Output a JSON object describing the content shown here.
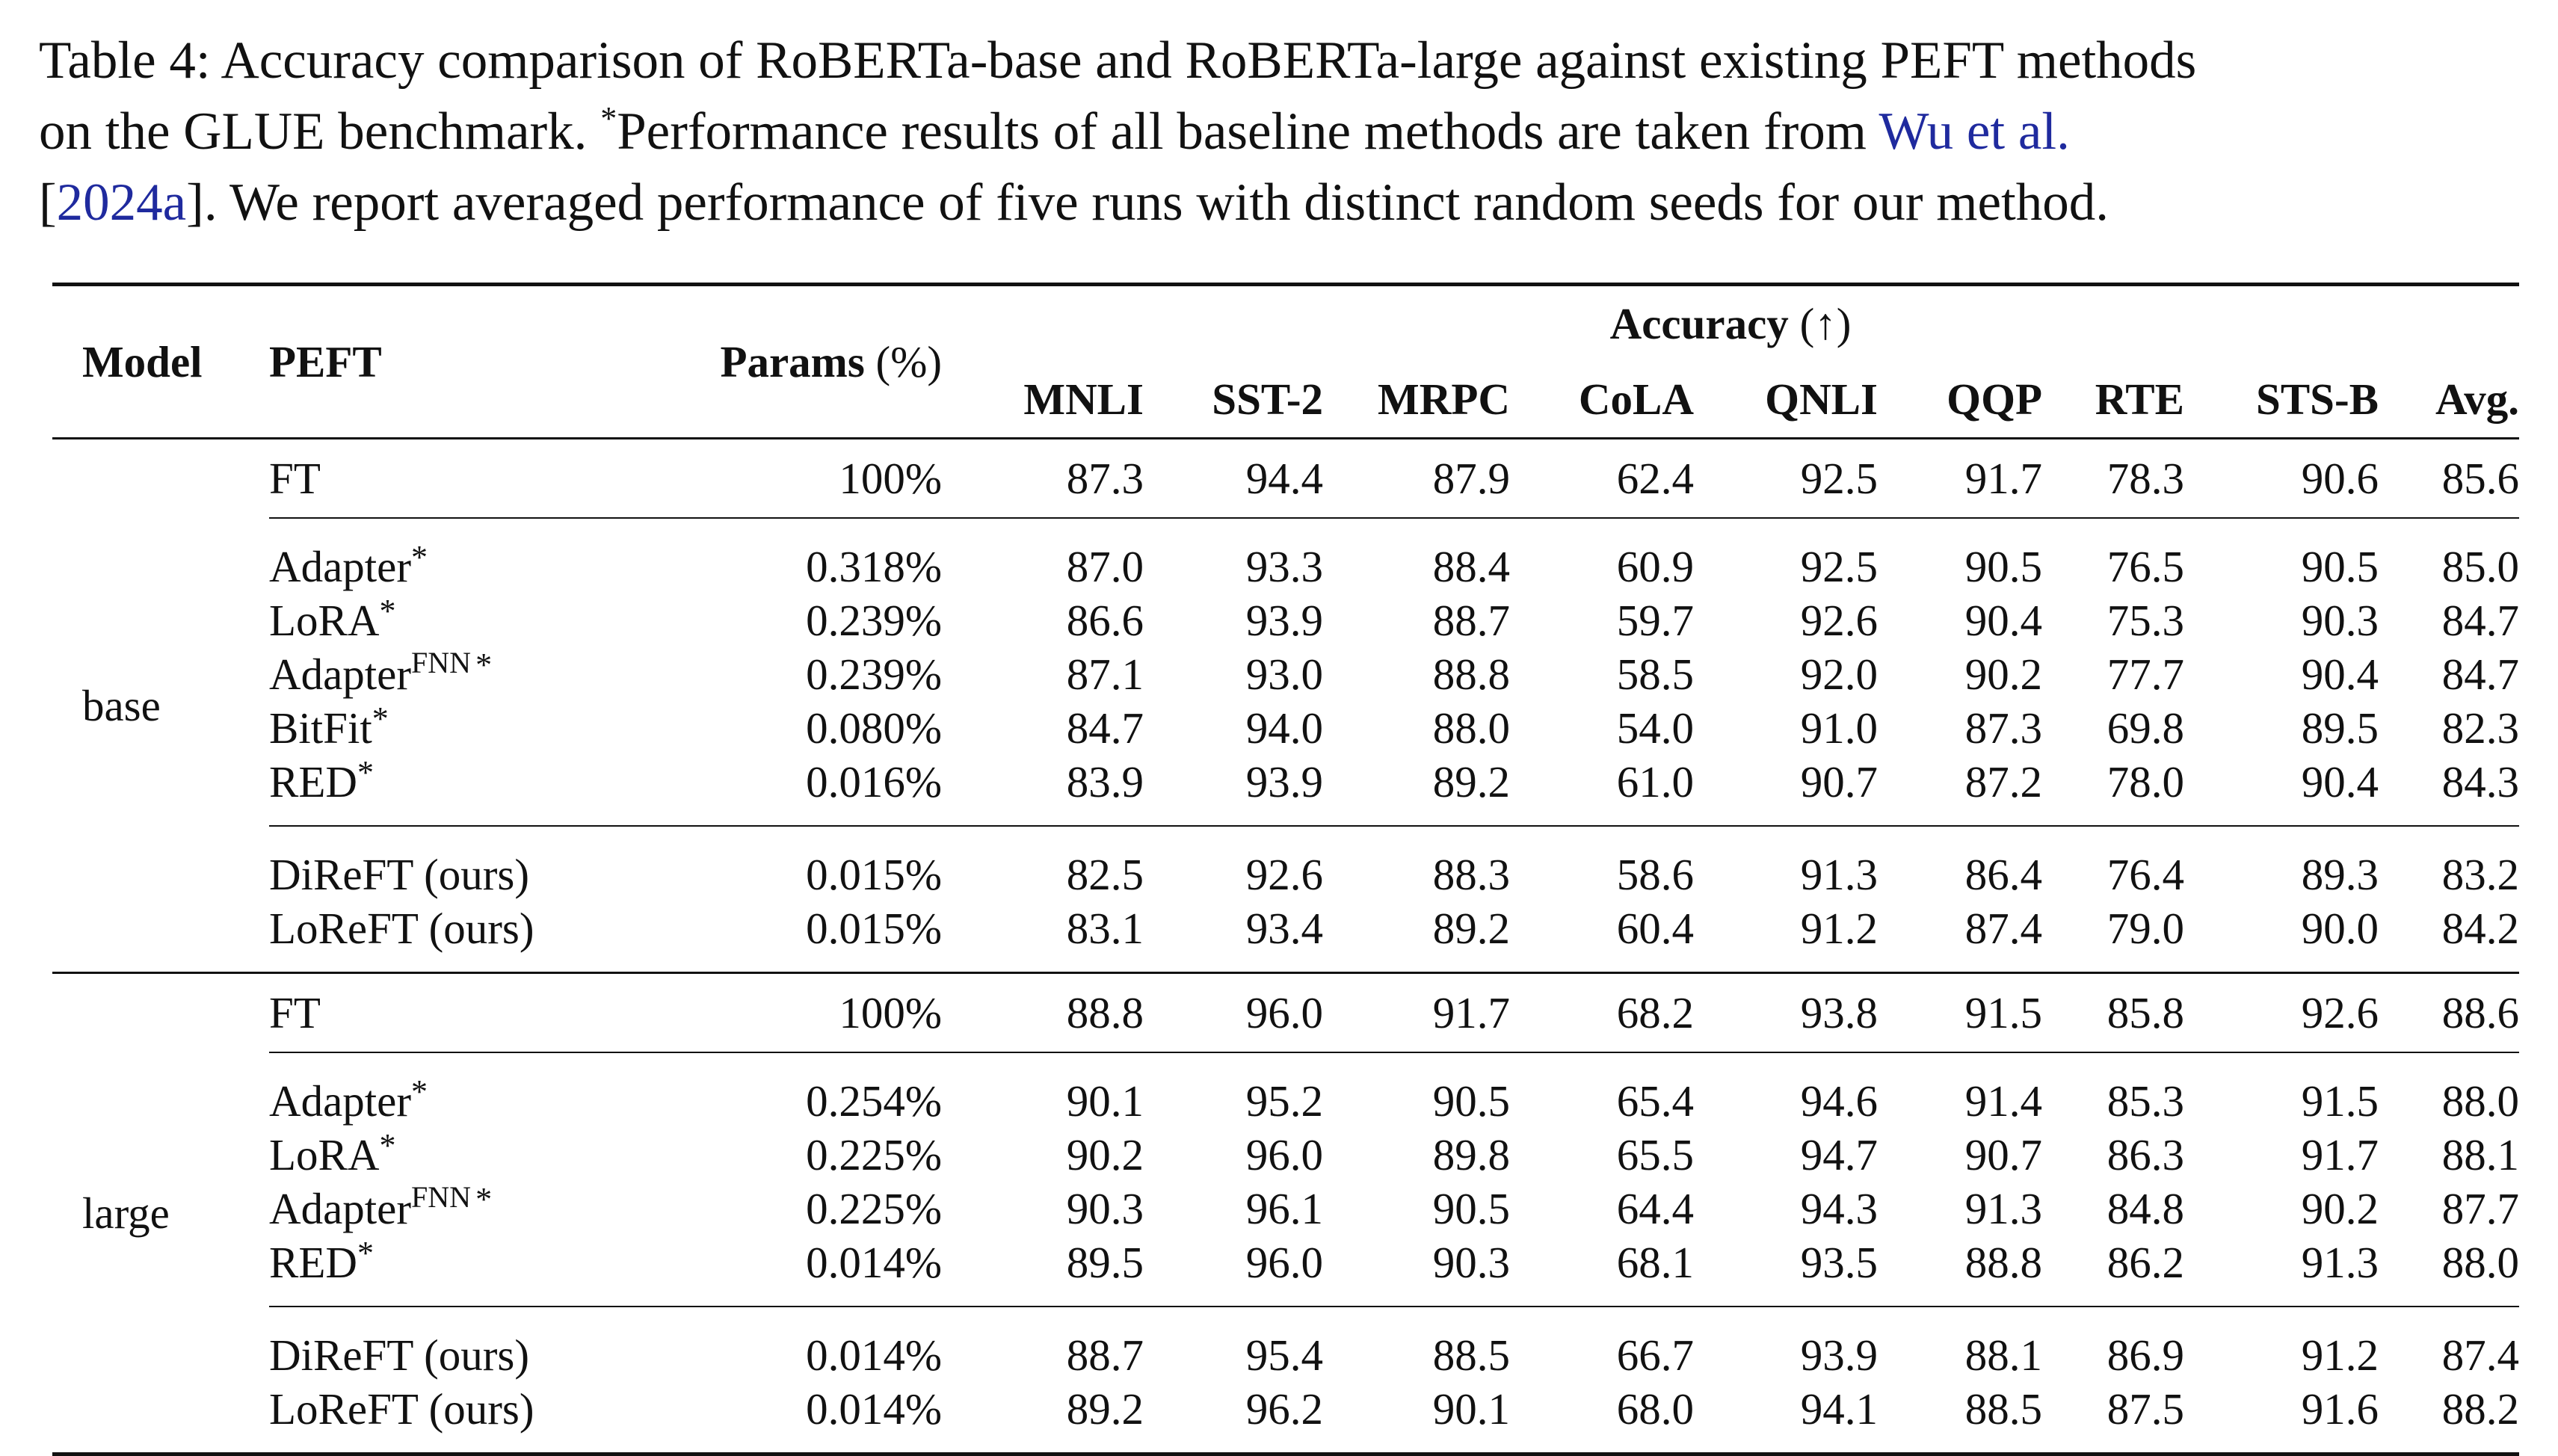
{
  "caption": {
    "line1": "Table 4: Accuracy comparison of RoBERTa-base and RoBERTa-large against existing PEFT methods",
    "line2_pre": "on the GLUE benchmark.  ",
    "line2_star": "*",
    "line2_mid": "Performance results of all baseline methods are taken from ",
    "line2_link": "Wu et al.",
    "line3_open": "[",
    "line3_link": "2024a",
    "line3_rest": "]. We report averaged performance of five runs with distinct random seeds for our method."
  },
  "header": {
    "model": "Model",
    "peft": "PEFT",
    "params_bold": "Params",
    "params_unit": "(%)",
    "accuracy_bold": "Accuracy",
    "accuracy_arrow": "(↑)",
    "columns": [
      "MNLI",
      "SST-2",
      "MRPC",
      "CoLA",
      "QNLI",
      "QQP",
      "RTE",
      "STS-B",
      "Avg."
    ]
  },
  "groups": [
    {
      "model": "base",
      "ft": {
        "method": "FT",
        "params": "100%",
        "values": [
          "87.3",
          "94.4",
          "87.9",
          "62.4",
          "92.5",
          "91.7",
          "78.3",
          "90.6",
          "85.6"
        ]
      },
      "baselines": [
        {
          "method": "Adapter",
          "sup": "*",
          "params": "0.318%",
          "values": [
            "87.0",
            "93.3",
            "88.4",
            "60.9",
            "92.5",
            "90.5",
            "76.5",
            "90.5",
            "85.0"
          ]
        },
        {
          "method": "LoRA",
          "sup": "*",
          "params": "0.239%",
          "values": [
            "86.6",
            "93.9",
            "88.7",
            "59.7",
            "92.6",
            "90.4",
            "75.3",
            "90.3",
            "84.7"
          ]
        },
        {
          "method": "Adapter",
          "sup": "FNN",
          "sup2": "*",
          "params": "0.239%",
          "values": [
            "87.1",
            "93.0",
            "88.8",
            "58.5",
            "92.0",
            "90.2",
            "77.7",
            "90.4",
            "84.7"
          ]
        },
        {
          "method": "BitFit",
          "sup": "*",
          "params": "0.080%",
          "values": [
            "84.7",
            "94.0",
            "88.0",
            "54.0",
            "91.0",
            "87.3",
            "69.8",
            "89.5",
            "82.3"
          ]
        },
        {
          "method": "RED",
          "sup": "*",
          "params": "0.016%",
          "values": [
            "83.9",
            "93.9",
            "89.2",
            "61.0",
            "90.7",
            "87.2",
            "78.0",
            "90.4",
            "84.3"
          ]
        }
      ],
      "ours": [
        {
          "method": "DiReFT (ours)",
          "params": "0.015%",
          "values": [
            "82.5",
            "92.6",
            "88.3",
            "58.6",
            "91.3",
            "86.4",
            "76.4",
            "89.3",
            "83.2"
          ]
        },
        {
          "method": "LoReFT (ours)",
          "params": "0.015%",
          "values": [
            "83.1",
            "93.4",
            "89.2",
            "60.4",
            "91.2",
            "87.4",
            "79.0",
            "90.0",
            "84.2"
          ]
        }
      ]
    },
    {
      "model": "large",
      "ft": {
        "method": "FT",
        "params": "100%",
        "values": [
          "88.8",
          "96.0",
          "91.7",
          "68.2",
          "93.8",
          "91.5",
          "85.8",
          "92.6",
          "88.6"
        ]
      },
      "baselines": [
        {
          "method": "Adapter",
          "sup": "*",
          "params": "0.254%",
          "values": [
            "90.1",
            "95.2",
            "90.5",
            "65.4",
            "94.6",
            "91.4",
            "85.3",
            "91.5",
            "88.0"
          ]
        },
        {
          "method": "LoRA",
          "sup": "*",
          "params": "0.225%",
          "values": [
            "90.2",
            "96.0",
            "89.8",
            "65.5",
            "94.7",
            "90.7",
            "86.3",
            "91.7",
            "88.1"
          ]
        },
        {
          "method": "Adapter",
          "sup": "FNN",
          "sup2": "*",
          "params": "0.225%",
          "values": [
            "90.3",
            "96.1",
            "90.5",
            "64.4",
            "94.3",
            "91.3",
            "84.8",
            "90.2",
            "87.7"
          ]
        },
        {
          "method": "RED",
          "sup": "*",
          "params": "0.014%",
          "values": [
            "89.5",
            "96.0",
            "90.3",
            "68.1",
            "93.5",
            "88.8",
            "86.2",
            "91.3",
            "88.0"
          ]
        }
      ],
      "ours": [
        {
          "method": "DiReFT (ours)",
          "params": "0.014%",
          "values": [
            "88.7",
            "95.4",
            "88.5",
            "66.7",
            "93.9",
            "88.1",
            "86.9",
            "91.2",
            "87.4"
          ]
        },
        {
          "method": "LoReFT (ours)",
          "params": "0.014%",
          "values": [
            "89.2",
            "96.2",
            "90.1",
            "68.0",
            "94.1",
            "88.5",
            "87.5",
            "91.6",
            "88.2"
          ]
        }
      ]
    }
  ]
}
